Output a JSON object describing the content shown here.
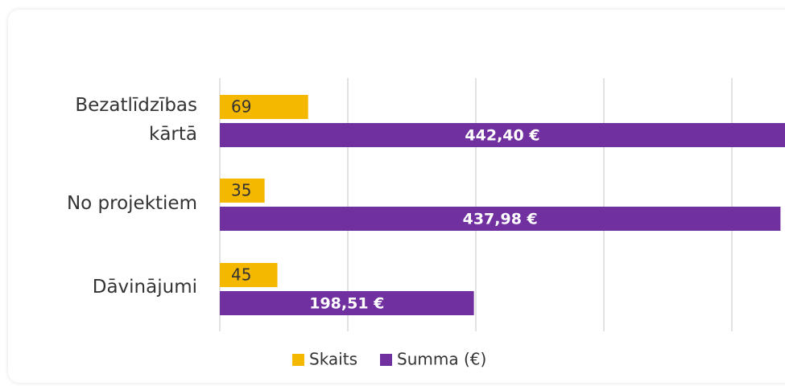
{
  "chart_data": {
    "type": "hbar",
    "categories": [
      "Bezatlīdzības kārtā",
      "No projektiem",
      "Dāvinājumi"
    ],
    "series": [
      {
        "name": "Skaits",
        "color": "#f5b800",
        "values": [
          69,
          35,
          45
        ]
      },
      {
        "name": "Summa (€)",
        "color": "#7030a0",
        "values": [
          442.4,
          437.98,
          198.51
        ],
        "value_labels": [
          "442,40 €",
          "437,98 €",
          "198,51 €"
        ]
      }
    ],
    "xlim": [
      0,
      442
    ],
    "xticks": [
      0,
      100,
      200,
      300,
      400
    ],
    "grid": true,
    "legend": "bottom"
  }
}
